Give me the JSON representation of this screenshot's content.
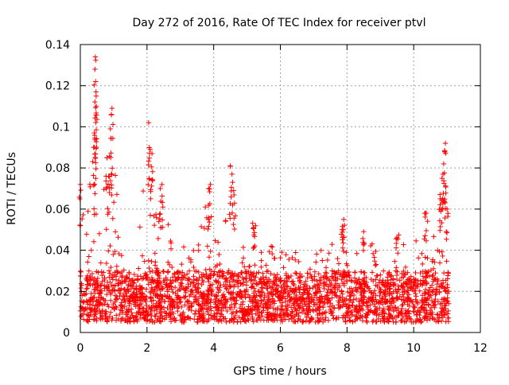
{
  "chart_data": {
    "type": "scatter",
    "title": "Day 272 of 2016, Rate Of TEC Index for receiver ptvl",
    "xlabel": "GPS time / hours",
    "ylabel": "ROTI / TECUs",
    "xlim": [
      0,
      12
    ],
    "ylim": [
      0,
      0.14
    ],
    "xticks": [
      0,
      2,
      4,
      6,
      8,
      10,
      12
    ],
    "yticks": [
      0,
      0.02,
      0.04,
      0.06,
      0.08,
      0.1,
      0.12,
      0.14
    ],
    "xtick_labels": [
      "0",
      "2",
      "4",
      "6",
      "8",
      "10",
      "12"
    ],
    "ytick_labels": [
      "0",
      "0.02",
      "0.04",
      "0.06",
      "0.08",
      "0.1",
      "0.12",
      "0.14"
    ],
    "grid": true,
    "marker": "+",
    "series": [
      {
        "name": "ROTI",
        "color": "#ff0000",
        "x_range_hours": [
          0,
          11.05
        ],
        "baseline_range": [
          0.005,
          0.03
        ],
        "notable_points": [
          {
            "x": 0.0,
            "y": 0.072
          },
          {
            "x": 0.45,
            "y": 0.134
          },
          {
            "x": 0.44,
            "y": 0.128
          },
          {
            "x": 0.46,
            "y": 0.122
          },
          {
            "x": 0.47,
            "y": 0.117
          },
          {
            "x": 0.48,
            "y": 0.11
          },
          {
            "x": 0.42,
            "y": 0.097
          },
          {
            "x": 0.4,
            "y": 0.09
          },
          {
            "x": 0.95,
            "y": 0.109
          },
          {
            "x": 0.93,
            "y": 0.106
          },
          {
            "x": 0.9,
            "y": 0.099
          },
          {
            "x": 0.8,
            "y": 0.085
          },
          {
            "x": 0.85,
            "y": 0.076
          },
          {
            "x": 2.05,
            "y": 0.102
          },
          {
            "x": 2.1,
            "y": 0.089
          },
          {
            "x": 2.15,
            "y": 0.087
          },
          {
            "x": 2.45,
            "y": 0.072
          },
          {
            "x": 2.4,
            "y": 0.07
          },
          {
            "x": 3.9,
            "y": 0.072
          },
          {
            "x": 3.85,
            "y": 0.07
          },
          {
            "x": 4.5,
            "y": 0.081
          },
          {
            "x": 4.55,
            "y": 0.077
          },
          {
            "x": 4.6,
            "y": 0.069
          },
          {
            "x": 5.2,
            "y": 0.051
          },
          {
            "x": 7.9,
            "y": 0.055
          },
          {
            "x": 7.85,
            "y": 0.05
          },
          {
            "x": 8.5,
            "y": 0.049
          },
          {
            "x": 9.5,
            "y": 0.046
          },
          {
            "x": 10.35,
            "y": 0.058
          },
          {
            "x": 10.95,
            "y": 0.092
          },
          {
            "x": 10.93,
            "y": 0.088
          },
          {
            "x": 10.9,
            "y": 0.082
          },
          {
            "x": 10.85,
            "y": 0.075
          },
          {
            "x": 10.8,
            "y": 0.065
          },
          {
            "x": 11.0,
            "y": 0.06
          }
        ]
      }
    ]
  }
}
